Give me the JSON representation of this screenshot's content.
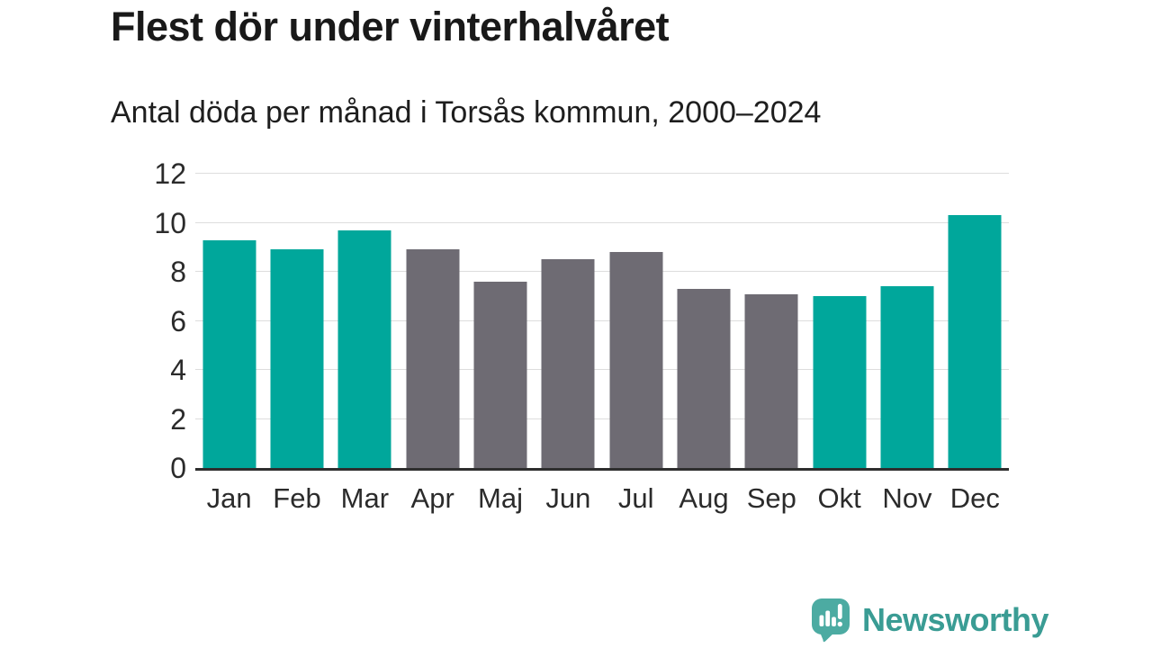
{
  "header": {
    "title": "Flest dör under vinterhalvåret",
    "subtitle": "Antal döda per månad i Torsås kommun, 2000–2024"
  },
  "chart_data": {
    "type": "bar",
    "title": "Flest dör under vinterhalvåret",
    "subtitle": "Antal döda per månad i Torsås kommun, 2000–2024",
    "categories": [
      "Jan",
      "Feb",
      "Mar",
      "Apr",
      "Maj",
      "Jun",
      "Jul",
      "Aug",
      "Sep",
      "Okt",
      "Nov",
      "Dec"
    ],
    "values": [
      9.3,
      8.9,
      9.7,
      8.9,
      7.6,
      8.5,
      8.8,
      7.3,
      7.1,
      7.0,
      7.4,
      10.3
    ],
    "bar_colors": [
      "teal",
      "teal",
      "teal",
      "gray",
      "gray",
      "gray",
      "gray",
      "gray",
      "gray",
      "teal",
      "teal",
      "teal"
    ],
    "palette": {
      "teal": "#00a79b",
      "gray": "#6e6b73"
    },
    "xlabel": "",
    "ylabel": "",
    "ylim": [
      0,
      12
    ],
    "yticks": [
      0,
      2,
      4,
      6,
      8,
      10,
      12
    ],
    "grid": "horizontal",
    "grid_color": "#dddddd",
    "axis_color": "#2e2e2e",
    "legend": "none"
  },
  "footer": {
    "brand": "Newsworthy",
    "logo_icon": "newsworthy-speech-bubble-bar-chart-icon",
    "brand_color": "#3a9c94",
    "icon_color": "#4caba2"
  }
}
